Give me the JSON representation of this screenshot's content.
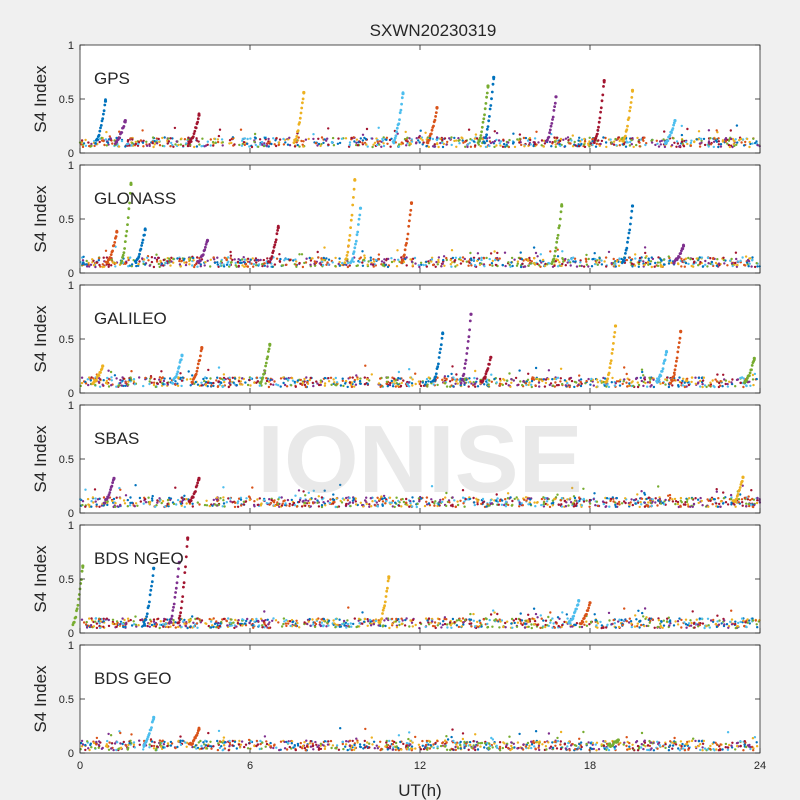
{
  "title": "SXWN20230319",
  "watermark": "IONISE",
  "xlabel": "UT(h)",
  "ylabel": "S4 Index",
  "colors": {
    "background": "#f0f0f0",
    "axes_bg": "#ffffff",
    "axes_edge": "#262626",
    "series": [
      "#0072BD",
      "#D95319",
      "#EDB120",
      "#7E2F8E",
      "#77AC30",
      "#4DBEEE",
      "#A2142F"
    ]
  },
  "chart_data": {
    "type": "scatter",
    "xlim": [
      0,
      24
    ],
    "ylim": [
      0,
      1
    ],
    "xticks": [
      0,
      6,
      12,
      18,
      24
    ],
    "xtick_labels": [
      "0",
      "6",
      "12",
      "18",
      "24"
    ],
    "yticks": [
      0,
      0.5,
      1
    ],
    "ytick_labels": [
      "0",
      "0.5",
      "1"
    ],
    "grid": false,
    "panels": [
      {
        "label": "GPS",
        "baseline": 0.1,
        "spikes": [
          {
            "x": 0.9,
            "y": 0.48
          },
          {
            "x": 1.6,
            "y": 0.3
          },
          {
            "x": 4.2,
            "y": 0.35
          },
          {
            "x": 7.9,
            "y": 0.56
          },
          {
            "x": 11.4,
            "y": 0.55
          },
          {
            "x": 12.6,
            "y": 0.42
          },
          {
            "x": 14.4,
            "y": 0.62
          },
          {
            "x": 14.6,
            "y": 0.7
          },
          {
            "x": 16.8,
            "y": 0.52
          },
          {
            "x": 18.5,
            "y": 0.67
          },
          {
            "x": 19.5,
            "y": 0.58
          },
          {
            "x": 21.0,
            "y": 0.3
          }
        ]
      },
      {
        "label": "GLONASS",
        "baseline": 0.1,
        "spikes": [
          {
            "x": 1.3,
            "y": 0.38
          },
          {
            "x": 1.8,
            "y": 0.82
          },
          {
            "x": 2.3,
            "y": 0.4
          },
          {
            "x": 4.5,
            "y": 0.3
          },
          {
            "x": 7.0,
            "y": 0.42
          },
          {
            "x": 9.7,
            "y": 0.86
          },
          {
            "x": 9.9,
            "y": 0.6
          },
          {
            "x": 11.7,
            "y": 0.65
          },
          {
            "x": 17.0,
            "y": 0.62
          },
          {
            "x": 19.5,
            "y": 0.62
          },
          {
            "x": 21.3,
            "y": 0.25
          }
        ]
      },
      {
        "label": "GALILEO",
        "baseline": 0.1,
        "spikes": [
          {
            "x": 0.8,
            "y": 0.25
          },
          {
            "x": 3.6,
            "y": 0.35
          },
          {
            "x": 4.3,
            "y": 0.42
          },
          {
            "x": 6.7,
            "y": 0.45
          },
          {
            "x": 12.8,
            "y": 0.55
          },
          {
            "x": 13.8,
            "y": 0.73
          },
          {
            "x": 14.5,
            "y": 0.33
          },
          {
            "x": 18.9,
            "y": 0.62
          },
          {
            "x": 20.7,
            "y": 0.38
          },
          {
            "x": 21.2,
            "y": 0.57
          },
          {
            "x": 23.8,
            "y": 0.32
          }
        ]
      },
      {
        "label": "SBAS",
        "baseline": 0.1,
        "spikes": [
          {
            "x": 1.2,
            "y": 0.32
          },
          {
            "x": 4.2,
            "y": 0.32
          },
          {
            "x": 23.4,
            "y": 0.33
          }
        ]
      },
      {
        "label": "BDS NGEO",
        "baseline": 0.09,
        "spikes": [
          {
            "x": 0.1,
            "y": 0.62
          },
          {
            "x": 2.6,
            "y": 0.6
          },
          {
            "x": 3.5,
            "y": 0.65
          },
          {
            "x": 3.8,
            "y": 0.88
          },
          {
            "x": 10.9,
            "y": 0.52
          },
          {
            "x": 17.6,
            "y": 0.3
          },
          {
            "x": 18.0,
            "y": 0.28
          }
        ]
      },
      {
        "label": "BDS GEO",
        "baseline": 0.07,
        "spikes": [
          {
            "x": 2.6,
            "y": 0.33
          },
          {
            "x": 4.2,
            "y": 0.22
          },
          {
            "x": 19.0,
            "y": 0.12
          }
        ]
      }
    ]
  }
}
